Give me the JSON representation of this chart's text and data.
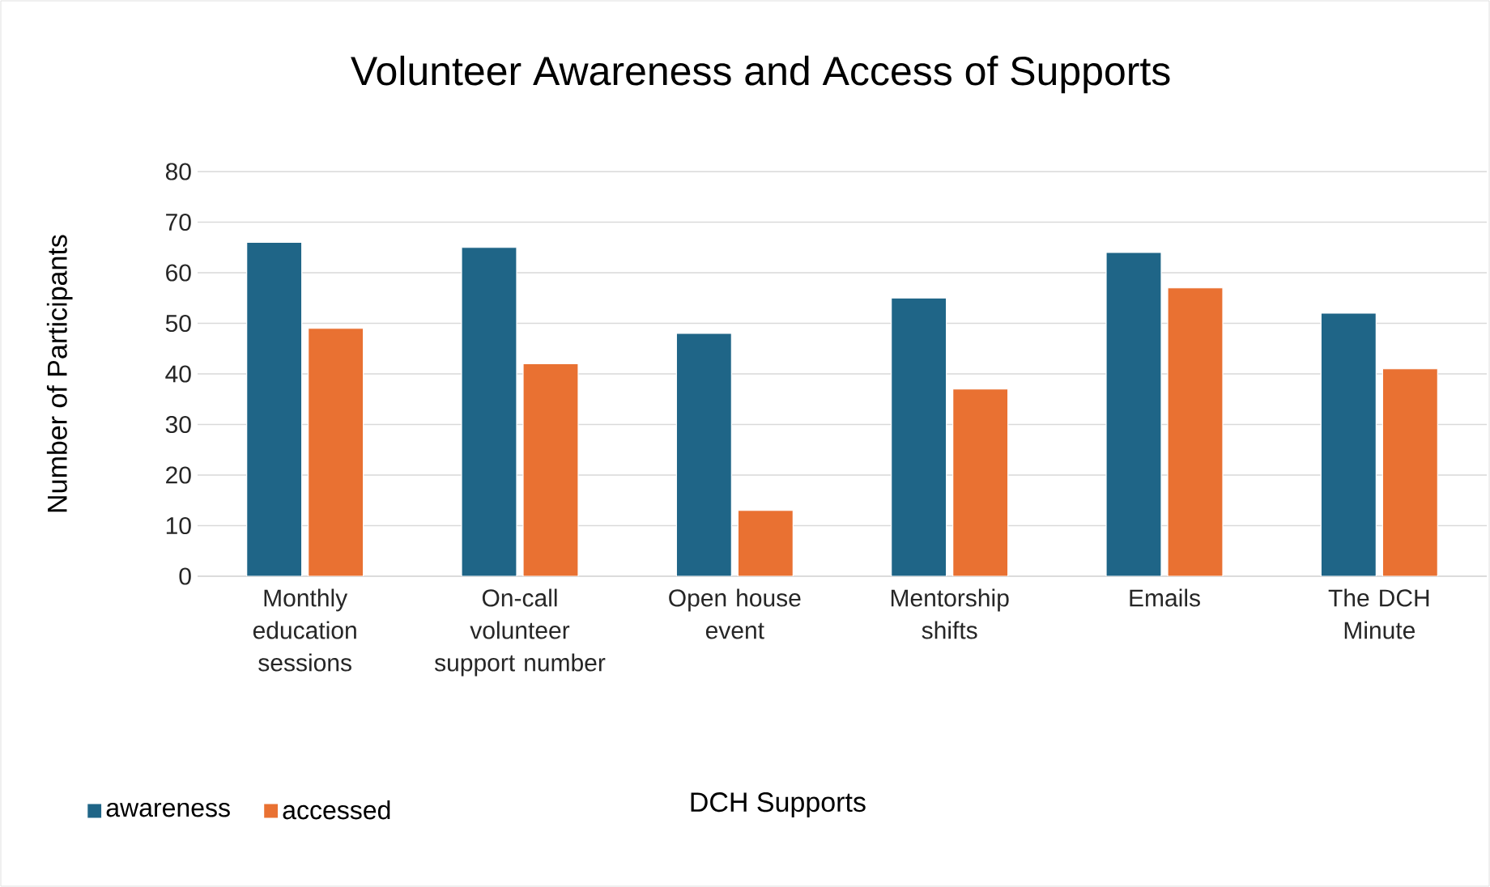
{
  "chart_data": {
    "type": "bar",
    "title": "Volunteer Awareness and Access of Supports",
    "xlabel": "DCH Supports",
    "ylabel": "Number of Participants",
    "categories": [
      "Monthly education sessions",
      "On-call volunteer support number",
      "Open house event",
      "Mentorship shifts",
      "Emails",
      "The DCH Minute"
    ],
    "series": [
      {
        "name": "awareness",
        "color": "#1f6587",
        "values": [
          66,
          65,
          48,
          55,
          64,
          52
        ]
      },
      {
        "name": "accessed",
        "color": "#e97132",
        "values": [
          49,
          42,
          13,
          37,
          57,
          41
        ]
      }
    ],
    "ylim": [
      0,
      80
    ],
    "yticks": [
      0,
      10,
      20,
      30,
      40,
      50,
      60,
      70,
      80
    ],
    "grid": "y",
    "legend": "bottom left"
  }
}
